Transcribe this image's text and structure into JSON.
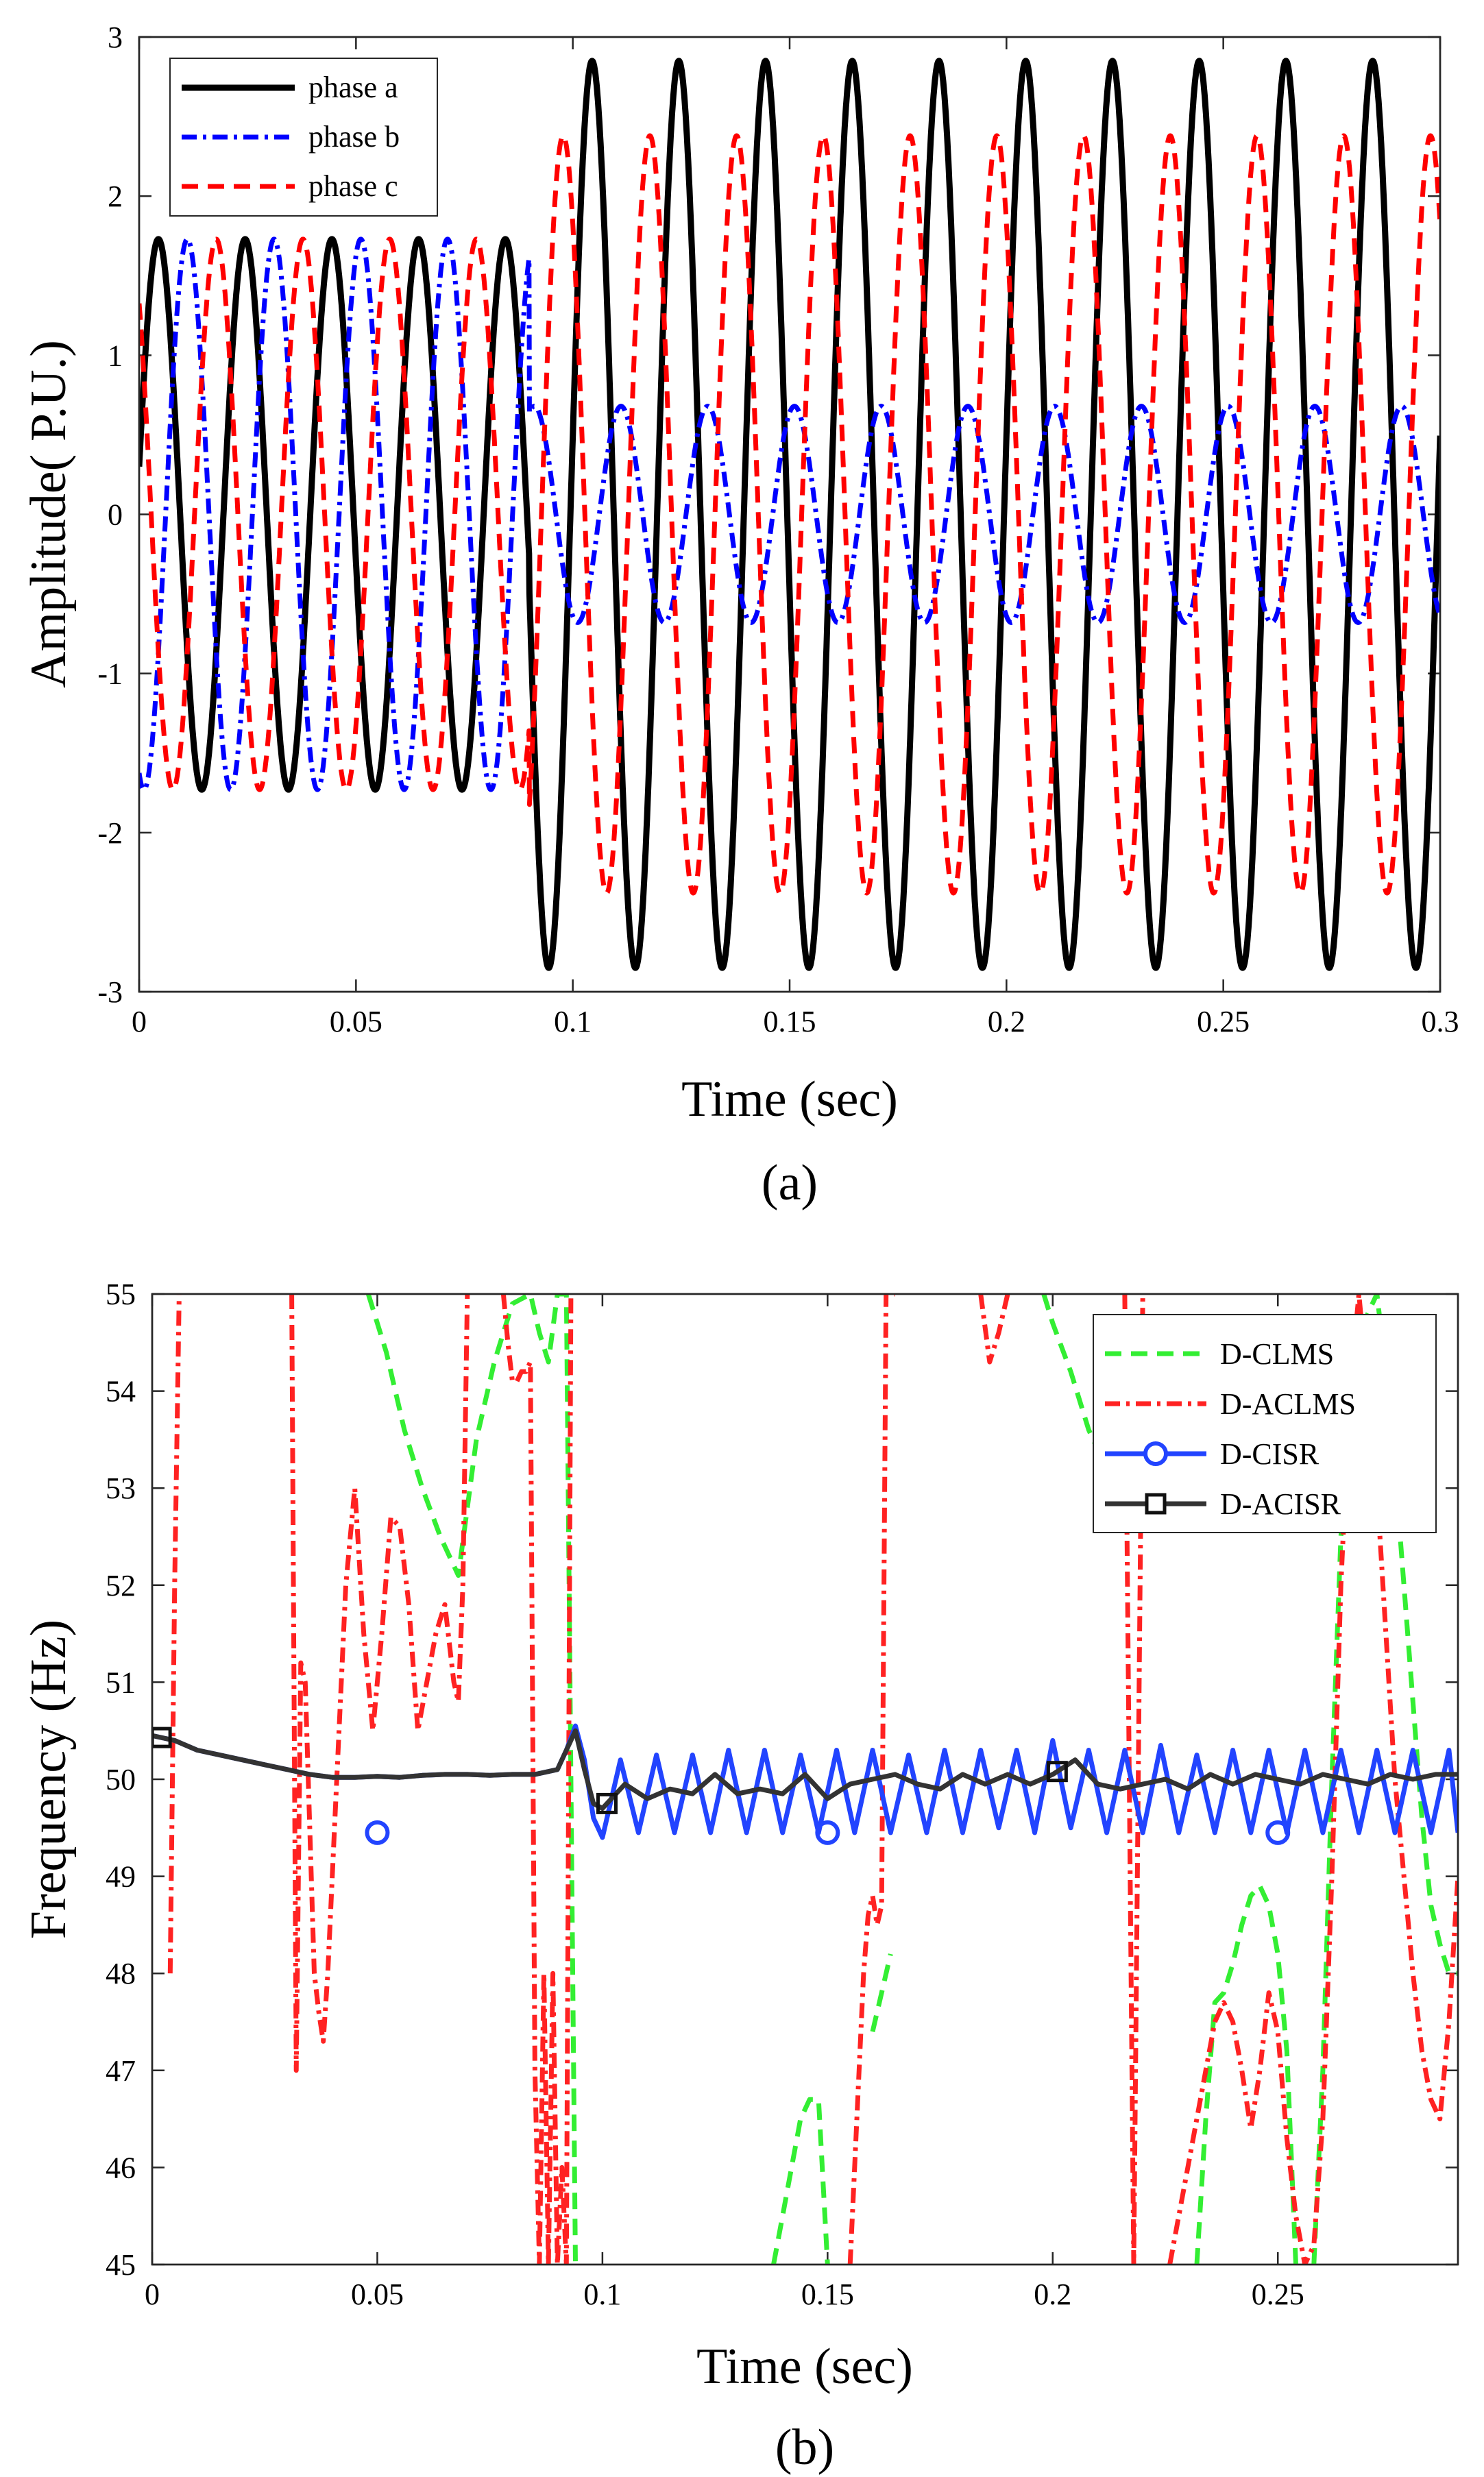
{
  "chart_data": [
    {
      "type": "line",
      "caption": "(a)",
      "xlabel": "Time (sec)",
      "ylabel": "Amplitude( P.U.)",
      "xlim": [
        0,
        0.3
      ],
      "ylim": [
        -3,
        3
      ],
      "xticks": [
        0,
        0.05,
        0.1,
        0.15,
        0.2,
        0.25,
        0.3
      ],
      "xtick_labels": [
        "0",
        "0.05",
        "0.1",
        "0.15",
        "0.2",
        "0.25",
        "0.3"
      ],
      "yticks": [
        -3,
        -2,
        -1,
        0,
        1,
        2,
        3
      ],
      "ytick_labels": [
        "-3",
        "-2",
        "-1",
        "0",
        "1",
        "2",
        "3"
      ],
      "legend_position": "top-left",
      "series": [
        {
          "name": "phase a",
          "color": "#000000",
          "dash": "solid",
          "frequency_hz": 50,
          "fault_time_s": 0.09,
          "amplitude_before": 1.73,
          "amplitude_after": 2.85,
          "phase_deg": 10
        },
        {
          "name": "phase b",
          "color": "#0000ff",
          "dash": "dashdot",
          "frequency_hz": 50,
          "fault_time_s": 0.09,
          "amplitude_before": 1.73,
          "amplitude_after": 0.68,
          "phase_deg": -110
        },
        {
          "name": "phase c",
          "color": "#ff0000",
          "dash": "dashed",
          "frequency_hz": 50,
          "fault_time_s": 0.09,
          "amplitude_before": 1.73,
          "amplitude_after": 2.38,
          "phase_deg": 130
        }
      ]
    },
    {
      "type": "line",
      "caption": "(b)",
      "xlabel": "Time (sec)",
      "ylabel": "Frequency (Hz)",
      "xlim": [
        0,
        0.29
      ],
      "ylim": [
        45,
        55
      ],
      "xticks": [
        0,
        0.05,
        0.1,
        0.15,
        0.2,
        0.25
      ],
      "xtick_labels": [
        "0",
        "0.05",
        "0.1",
        "0.15",
        "0.2",
        "0.25"
      ],
      "yticks": [
        45,
        46,
        47,
        48,
        49,
        50,
        51,
        52,
        53,
        54,
        55
      ],
      "ytick_labels": [
        "45",
        "46",
        "47",
        "48",
        "49",
        "50",
        "51",
        "52",
        "53",
        "54",
        "55"
      ],
      "legend_position": "top-right",
      "series": [
        {
          "name": "D-CLMS",
          "color": "#33ee33",
          "dash": "dashed",
          "marker": "none",
          "x": [
            0.048,
            0.052,
            0.056,
            0.06,
            0.064,
            0.068,
            0.072,
            0.076,
            0.08,
            0.084,
            0.086,
            0.088,
            0.09,
            0.092,
            0.094,
            null,
            0.138,
            0.14,
            0.142,
            0.144,
            0.146,
            0.148,
            0.15,
            null,
            0.16,
            0.162,
            0.164,
            null,
            0.198,
            0.2,
            0.204,
            0.208,
            0.212,
            null,
            0.232,
            0.234,
            0.236,
            0.238,
            0.24,
            0.242,
            0.244,
            0.246,
            0.248,
            0.25,
            0.252,
            0.254,
            null,
            0.258,
            0.26,
            0.262,
            0.264,
            0.266,
            0.268,
            0.27,
            0.272,
            0.274,
            0.276,
            0.278,
            0.28,
            0.282,
            0.284,
            0.286,
            0.288,
            0.29
          ],
          "y": [
            55,
            54.4,
            53.6,
            53,
            52.5,
            52.1,
            53.5,
            54.3,
            54.9,
            55,
            54.6,
            54.3,
            55,
            55,
            45,
            null,
            45,
            45.5,
            46,
            46.5,
            46.7,
            46.7,
            45,
            null,
            47.4,
            47.8,
            48.2,
            null,
            55,
            54.7,
            54.2,
            53.6,
            53.2,
            null,
            45,
            46.5,
            47.7,
            47.8,
            48.1,
            48.5,
            48.8,
            48.9,
            48.7,
            48.2,
            47.2,
            45,
            null,
            45,
            47,
            50,
            52.5,
            53.8,
            54.5,
            54.8,
            55,
            54.2,
            53.2,
            52,
            50.8,
            49.6,
            48.7,
            48.3,
            48,
            48
          ],
          "markers_x": []
        },
        {
          "name": "D-ACLMS",
          "color": "#ff2222",
          "dash": "dashdot",
          "marker": "none",
          "x": [
            0.004,
            0.005,
            0.006,
            null,
            0.031,
            0.032,
            0.033,
            0.034,
            0.035,
            0.036,
            0.037,
            0.038,
            0.039,
            0.041,
            0.043,
            0.045,
            0.047,
            0.049,
            0.051,
            0.053,
            0.055,
            0.057,
            0.059,
            0.061,
            0.063,
            0.065,
            0.067,
            0.068,
            0.069,
            0.07,
            null,
            0.078,
            0.079,
            0.08,
            0.081,
            0.082,
            0.083,
            0.084,
            0.085,
            0.086,
            0.087,
            0.088,
            0.089,
            0.09,
            0.091,
            0.092,
            0.093,
            null,
            0.155,
            0.156,
            0.157,
            0.158,
            0.159,
            0.16,
            0.161,
            0.162,
            0.163,
            0.164,
            0.165,
            null,
            0.184,
            0.186,
            0.188,
            0.19,
            null,
            0.216,
            0.217,
            0.218,
            0.219,
            0.22,
            null,
            0.226,
            0.228,
            0.23,
            0.232,
            0.234,
            0.236,
            0.238,
            0.24,
            0.242,
            0.244,
            0.246,
            0.248,
            0.25,
            0.252,
            0.254,
            0.256,
            0.258,
            0.26,
            0.262,
            0.264,
            0.266,
            0.268,
            0.27,
            0.272,
            0.274,
            0.276,
            0.278,
            0.28,
            0.282,
            0.284,
            0.286,
            0.288,
            0.29
          ],
          "y": [
            48,
            52,
            55,
            null,
            55,
            47,
            51.2,
            51,
            49.5,
            48,
            47.6,
            47.3,
            48,
            50,
            52,
            53,
            51.5,
            50.5,
            51.5,
            52.7,
            52.6,
            51.8,
            50.5,
            51,
            51.5,
            51.8,
            51,
            50.8,
            52,
            55,
            null,
            55,
            54.5,
            54.1,
            54.1,
            54.2,
            54.2,
            54.3,
            47,
            45,
            48,
            45,
            48,
            45,
            46,
            45,
            55,
            null,
            45,
            46,
            47,
            48,
            48.6,
            48.8,
            48.5,
            48.7,
            55,
            55,
            55,
            null,
            55,
            54.3,
            54.6,
            55,
            null,
            55,
            50,
            45,
            50,
            55,
            null,
            45,
            45.5,
            46,
            46.5,
            47,
            47.5,
            47.7,
            47.5,
            47,
            46.4,
            47,
            47.8,
            47.4,
            46.3,
            45.5,
            45,
            45.2,
            46.5,
            49,
            52,
            54,
            55,
            54,
            53,
            51.5,
            50,
            49,
            48,
            47.2,
            46.7,
            46.5,
            47.5,
            49
          ],
          "markers_x": []
        },
        {
          "name": "D-CISR",
          "color": "#2244ff",
          "dash": "solid",
          "marker": "circle",
          "x": [
            0,
            0.005,
            0.01,
            0.015,
            0.02,
            0.025,
            0.03,
            0.035,
            0.04,
            0.045,
            0.05,
            0.055,
            0.06,
            0.065,
            0.07,
            0.075,
            0.08,
            0.085,
            0.09,
            0.092,
            0.094,
            0.096,
            0.098,
            0.1,
            0.104,
            0.108,
            0.112,
            0.116,
            0.12,
            0.124,
            0.128,
            0.132,
            0.136,
            0.14,
            0.144,
            0.148,
            0.152,
            0.156,
            0.16,
            0.164,
            0.168,
            0.172,
            0.176,
            0.18,
            0.184,
            0.188,
            0.192,
            0.196,
            0.2,
            0.204,
            0.208,
            0.212,
            0.216,
            0.22,
            0.224,
            0.228,
            0.232,
            0.236,
            0.24,
            0.244,
            0.248,
            0.252,
            0.256,
            0.26,
            0.264,
            0.268,
            0.272,
            0.276,
            0.28,
            0.284,
            0.288,
            0.29
          ],
          "y": [
            50.45,
            50.4,
            50.3,
            50.25,
            50.2,
            50.15,
            50.1,
            50.05,
            50.02,
            50.02,
            50.03,
            50.02,
            50.04,
            50.05,
            50.05,
            50.04,
            50.05,
            50.05,
            50.1,
            50.3,
            50.55,
            50.2,
            49.6,
            49.4,
            50.2,
            49.45,
            50.25,
            49.45,
            50.25,
            49.45,
            50.3,
            49.45,
            50.3,
            49.45,
            50.25,
            49.45,
            50.3,
            49.45,
            50.3,
            49.45,
            50.25,
            49.45,
            50.3,
            49.45,
            50.3,
            49.5,
            50.3,
            49.45,
            50.4,
            49.5,
            50.3,
            49.45,
            50.3,
            49.45,
            50.35,
            49.45,
            50.25,
            49.45,
            50.3,
            49.45,
            50.3,
            49.45,
            50.3,
            49.45,
            50.3,
            49.45,
            50.3,
            49.45,
            50.3,
            49.45,
            50.3,
            49.45
          ],
          "markers_x": [
            0.05,
            0.15,
            0.25
          ]
        },
        {
          "name": "D-ACISR",
          "color": "#333333",
          "dash": "solid",
          "marker": "square",
          "x": [
            0,
            0.005,
            0.01,
            0.015,
            0.02,
            0.025,
            0.03,
            0.035,
            0.04,
            0.045,
            0.05,
            0.055,
            0.06,
            0.065,
            0.07,
            0.075,
            0.08,
            0.085,
            0.09,
            0.092,
            0.094,
            0.096,
            0.098,
            0.1,
            0.105,
            0.11,
            0.115,
            0.12,
            0.125,
            0.13,
            0.135,
            0.14,
            0.145,
            0.15,
            0.155,
            0.16,
            0.165,
            0.17,
            0.175,
            0.18,
            0.185,
            0.19,
            0.195,
            0.2,
            0.205,
            0.21,
            0.215,
            0.22,
            0.225,
            0.23,
            0.235,
            0.24,
            0.245,
            0.25,
            0.255,
            0.26,
            0.265,
            0.27,
            0.275,
            0.28,
            0.285,
            0.29
          ],
          "y": [
            50.45,
            50.4,
            50.3,
            50.25,
            50.2,
            50.15,
            50.1,
            50.05,
            50.02,
            50.02,
            50.03,
            50.02,
            50.04,
            50.05,
            50.05,
            50.04,
            50.05,
            50.05,
            50.1,
            50.3,
            50.5,
            50.1,
            49.75,
            49.7,
            49.95,
            49.8,
            49.9,
            49.85,
            50.05,
            49.85,
            49.9,
            49.85,
            50.05,
            49.8,
            49.95,
            50,
            50.05,
            49.95,
            49.9,
            50.05,
            49.95,
            50.05,
            49.95,
            50.05,
            50.2,
            49.95,
            49.9,
            49.95,
            50,
            49.9,
            50.05,
            49.95,
            50.05,
            50,
            49.95,
            50.05,
            50,
            49.95,
            50.05,
            50,
            50.05,
            50.05
          ],
          "markers_x": [
            0.002,
            0.101,
            0.201
          ]
        }
      ]
    }
  ]
}
